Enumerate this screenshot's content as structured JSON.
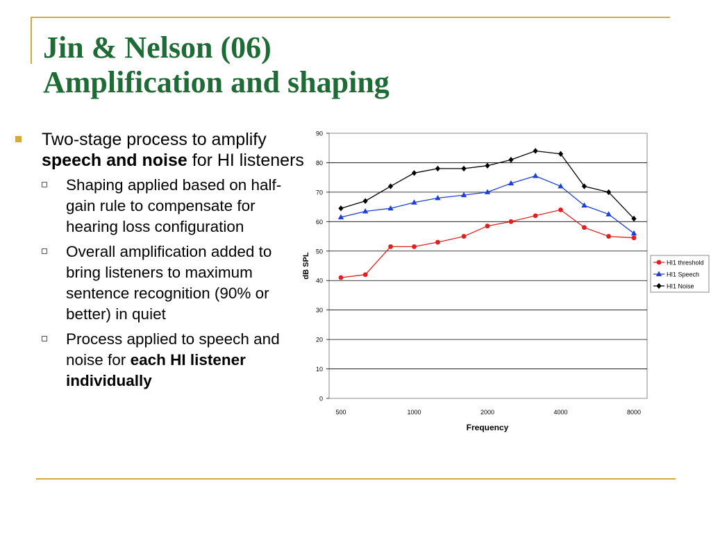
{
  "slide": {
    "title_line1": "Jin & Nelson (06)",
    "title_line2": "Amplification and shaping",
    "bullet1_pre": "Two-stage process to amplify ",
    "bullet1_bold": "speech and noise",
    "bullet1_post": " for HI listeners",
    "sub1": "Shaping applied based on half-gain rule to compensate for hearing loss configuration",
    "sub2": "Overall amplification added to bring listeners to maximum sentence recognition (90% or better) in quiet",
    "sub3_pre": "Process applied to speech and noise for ",
    "sub3_bold": "each HI listener individually"
  },
  "colors": {
    "title": "#1e6b35",
    "accent": "#d4aa3c",
    "threshold": "#e02020",
    "speech": "#1f3fd6",
    "noise": "#000000"
  },
  "chart_data": {
    "type": "line",
    "xlabel": "Frequency",
    "ylabel": "dB SPL",
    "ylim": [
      0,
      90
    ],
    "yticks": [
      0,
      10,
      20,
      30,
      40,
      50,
      60,
      70,
      80,
      90
    ],
    "x_log_scale": true,
    "xlim": [
      500,
      8000
    ],
    "xtick_labels": [
      "500",
      "1000",
      "2000",
      "4000",
      "8000"
    ],
    "x": [
      500,
      630,
      800,
      1000,
      1250,
      1600,
      2000,
      2500,
      3150,
      4000,
      5000,
      6300,
      8000
    ],
    "grid": "horizontal",
    "legend_position": "right",
    "series": [
      {
        "name": "HI1 threshold",
        "marker": "circle",
        "values": [
          41,
          42,
          51.5,
          51.5,
          53,
          55,
          58.5,
          60,
          62,
          64,
          58,
          55,
          54.5
        ]
      },
      {
        "name": "HI1 Speech",
        "marker": "triangle",
        "values": [
          61.5,
          63.5,
          64.5,
          66.5,
          68,
          69,
          70,
          73,
          75.5,
          72,
          65.5,
          62.5,
          56
        ]
      },
      {
        "name": "HI1 Noise",
        "marker": "diamond",
        "values": [
          64.5,
          67,
          72,
          76.5,
          78,
          78,
          79,
          81,
          84,
          83,
          72,
          70,
          61
        ]
      }
    ]
  }
}
